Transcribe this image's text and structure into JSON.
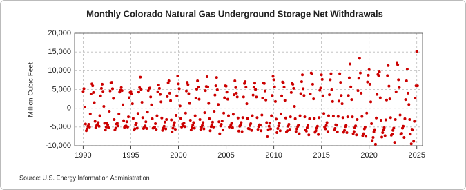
{
  "chart_data": {
    "type": "scatter",
    "title": "Monthly Colorado Natural Gas Underground Storage Net Withdrawals",
    "y_label": "Million Cubic Feet",
    "source": "Source: U.S. Energy Information Administration",
    "color": "#cc0000",
    "grid": true,
    "xlim": [
      1989.1,
      2025.6
    ],
    "xticks": [
      1990,
      1995,
      2000,
      2005,
      2010,
      2015,
      2020,
      2025
    ],
    "ylim": [
      -10000,
      20000
    ],
    "yticks": [
      {
        "value": 20000,
        "label": "20,000"
      },
      {
        "value": 15000,
        "label": "15,000"
      },
      {
        "value": 10000,
        "label": "10,000"
      },
      {
        "value": 5000,
        "label": "5,000"
      },
      0,
      {
        "value": -5000,
        "label": "-5,000"
      },
      {
        "value": -10000,
        "label": "-10,000"
      }
    ],
    "x": [
      1990,
      1990.08,
      1990.17,
      1990.25,
      1990.33,
      1990.42,
      1990.5,
      1990.58,
      1990.67,
      1990.75,
      1990.83,
      1990.92,
      1991,
      1991.08,
      1991.17,
      1991.25,
      1991.33,
      1991.42,
      1991.5,
      1991.58,
      1991.67,
      1991.75,
      1991.83,
      1991.92,
      1992,
      1992.08,
      1992.17,
      1992.25,
      1992.33,
      1992.42,
      1992.5,
      1992.58,
      1992.67,
      1992.75,
      1992.83,
      1992.92,
      1993,
      1993.08,
      1993.17,
      1993.25,
      1993.33,
      1993.42,
      1993.5,
      1993.58,
      1993.67,
      1993.75,
      1993.83,
      1993.92,
      1994,
      1994.08,
      1994.17,
      1994.25,
      1994.33,
      1994.42,
      1994.5,
      1994.58,
      1994.67,
      1994.75,
      1994.83,
      1994.92,
      1995,
      1995.08,
      1995.17,
      1995.25,
      1995.33,
      1995.42,
      1995.5,
      1995.58,
      1995.67,
      1995.75,
      1995.83,
      1995.92,
      1996,
      1996.08,
      1996.17,
      1996.25,
      1996.33,
      1996.42,
      1996.5,
      1996.58,
      1996.67,
      1996.75,
      1996.83,
      1996.92,
      1997,
      1997.08,
      1997.17,
      1997.25,
      1997.33,
      1997.42,
      1997.5,
      1997.58,
      1997.67,
      1997.75,
      1997.83,
      1997.92,
      1998,
      1998.08,
      1998.17,
      1998.25,
      1998.33,
      1998.42,
      1998.5,
      1998.58,
      1998.67,
      1998.75,
      1998.83,
      1998.92,
      1999,
      1999.08,
      1999.17,
      1999.25,
      1999.33,
      1999.42,
      1999.5,
      1999.58,
      1999.67,
      1999.75,
      1999.83,
      1999.92,
      2000,
      2000.08,
      2000.17,
      2000.25,
      2000.33,
      2000.42,
      2000.5,
      2000.58,
      2000.67,
      2000.75,
      2000.83,
      2000.92,
      2001,
      2001.08,
      2001.17,
      2001.25,
      2001.33,
      2001.42,
      2001.5,
      2001.58,
      2001.67,
      2001.75,
      2001.83,
      2001.92,
      2002,
      2002.08,
      2002.17,
      2002.25,
      2002.33,
      2002.42,
      2002.5,
      2002.58,
      2002.67,
      2002.75,
      2002.83,
      2002.92,
      2003,
      2003.08,
      2003.17,
      2003.25,
      2003.33,
      2003.42,
      2003.5,
      2003.58,
      2003.67,
      2003.75,
      2003.83,
      2003.92,
      2004,
      2004.08,
      2004.17,
      2004.25,
      2004.33,
      2004.42,
      2004.5,
      2004.58,
      2004.67,
      2004.75,
      2004.83,
      2004.92,
      2005,
      2005.08,
      2005.17,
      2005.25,
      2005.33,
      2005.42,
      2005.5,
      2005.58,
      2005.67,
      2005.75,
      2005.83,
      2005.92,
      2006,
      2006.08,
      2006.17,
      2006.25,
      2006.33,
      2006.42,
      2006.5,
      2006.58,
      2006.67,
      2006.75,
      2006.83,
      2006.92,
      2007,
      2007.08,
      2007.17,
      2007.25,
      2007.33,
      2007.42,
      2007.5,
      2007.58,
      2007.67,
      2007.75,
      2007.83,
      2007.92,
      2008,
      2008.08,
      2008.17,
      2008.25,
      2008.33,
      2008.42,
      2008.5,
      2008.58,
      2008.67,
      2008.75,
      2008.83,
      2008.92,
      2009,
      2009.08,
      2009.17,
      2009.25,
      2009.33,
      2009.42,
      2009.5,
      2009.58,
      2009.67,
      2009.75,
      2009.83,
      2009.92,
      2010,
      2010.08,
      2010.17,
      2010.25,
      2010.33,
      2010.42,
      2010.5,
      2010.58,
      2010.67,
      2010.75,
      2010.83,
      2010.92,
      2011,
      2011.08,
      2011.17,
      2011.25,
      2011.33,
      2011.42,
      2011.5,
      2011.58,
      2011.67,
      2011.75,
      2011.83,
      2011.92,
      2012,
      2012.08,
      2012.17,
      2012.25,
      2012.33,
      2012.42,
      2012.5,
      2012.58,
      2012.67,
      2012.75,
      2012.83,
      2012.92,
      2013,
      2013.08,
      2013.17,
      2013.25,
      2013.33,
      2013.42,
      2013.5,
      2013.58,
      2013.67,
      2013.75,
      2013.83,
      2013.92,
      2014,
      2014.08,
      2014.17,
      2014.25,
      2014.33,
      2014.42,
      2014.5,
      2014.58,
      2014.67,
      2014.75,
      2014.83,
      2014.92,
      2015,
      2015.08,
      2015.17,
      2015.25,
      2015.33,
      2015.42,
      2015.5,
      2015.58,
      2015.67,
      2015.75,
      2015.83,
      2015.92,
      2016,
      2016.08,
      2016.17,
      2016.25,
      2016.33,
      2016.42,
      2016.5,
      2016.58,
      2016.67,
      2016.75,
      2016.83,
      2016.92,
      2017,
      2017.08,
      2017.17,
      2017.25,
      2017.33,
      2017.42,
      2017.5,
      2017.58,
      2017.67,
      2017.75,
      2017.83,
      2017.92,
      2018,
      2018.08,
      2018.17,
      2018.25,
      2018.33,
      2018.42,
      2018.5,
      2018.58,
      2018.67,
      2018.75,
      2018.83,
      2018.92,
      2019,
      2019.08,
      2019.17,
      2019.25,
      2019.33,
      2019.42,
      2019.5,
      2019.58,
      2019.67,
      2019.75,
      2019.83,
      2019.92,
      2020,
      2020.08,
      2020.17,
      2020.25,
      2020.33,
      2020.42,
      2020.5,
      2020.58,
      2020.67,
      2020.75,
      2020.83,
      2020.92,
      2021,
      2021.08,
      2021.17,
      2021.25,
      2021.33,
      2021.42,
      2021.5,
      2021.58,
      2021.67,
      2021.75,
      2021.83,
      2021.92,
      2022,
      2022.08,
      2022.17,
      2022.25,
      2022.33,
      2022.42,
      2022.5,
      2022.58,
      2022.67,
      2022.75,
      2022.83,
      2022.92,
      2023,
      2023.08,
      2023.17,
      2023.25,
      2023.33,
      2023.42,
      2023.5,
      2023.58,
      2023.67,
      2023.75,
      2023.83,
      2023.92,
      2024,
      2024.08,
      2024.17,
      2024.25,
      2024.33,
      2024.42,
      2024.5,
      2024.58,
      2024.67,
      2024.75,
      2024.83,
      2024.92,
      2025,
      2025.08
    ],
    "values": [
      4500,
      5200,
      300,
      -4200,
      -6000,
      -5500,
      -4800,
      -4300,
      -5000,
      -1500,
      3800,
      6500,
      6000,
      4200,
      1500,
      -3500,
      -5200,
      -4600,
      -4300,
      -3800,
      -4800,
      -2000,
      3300,
      5300,
      6400,
      4500,
      500,
      -4000,
      -5800,
      -5000,
      -4000,
      -4400,
      -5200,
      -800,
      4600,
      6800,
      6900,
      5200,
      2600,
      -3000,
      -5800,
      -5300,
      -4200,
      -4000,
      -4700,
      -1500,
      4300,
      4800,
      5500,
      4700,
      900,
      -3300,
      -5100,
      -4800,
      -4700,
      -3600,
      -5000,
      -2300,
      2800,
      4200,
      4500,
      3900,
      1200,
      -2700,
      -5800,
      -5500,
      -4400,
      -4000,
      -5300,
      -1400,
      4300,
      5500,
      8300,
      5000,
      1600,
      -2500,
      -5400,
      -5000,
      -4700,
      -3600,
      -5400,
      -1000,
      4700,
      5300,
      5400,
      3000,
      900,
      -2800,
      -5300,
      -5200,
      -5000,
      -4100,
      -5600,
      -2000,
      4400,
      6200,
      5300,
      3700,
      1700,
      -2600,
      -5900,
      -5300,
      -4800,
      -3700,
      -5500,
      -3000,
      3100,
      6800,
      7300,
      4000,
      2000,
      -3100,
      -6300,
      -5300,
      -4600,
      -3800,
      -5600,
      -1900,
      3300,
      8600,
      6500,
      5200,
      600,
      -2700,
      -5000,
      -4200,
      -4700,
      -4000,
      -4900,
      -1300,
      4600,
      6900,
      6300,
      3900,
      1300,
      -3200,
      -5800,
      -5200,
      -4500,
      -3800,
      -5300,
      -2000,
      2700,
      5100,
      7300,
      5600,
      2400,
      -3000,
      -5600,
      -5000,
      -4600,
      -3800,
      -5500,
      -1200,
      4700,
      5800,
      8400,
      5700,
      1300,
      -2800,
      -6000,
      -4900,
      -4400,
      -3700,
      -5000,
      -800,
      3500,
      6000,
      8200,
      4900,
      1000,
      -3600,
      -6800,
      -4700,
      -4300,
      -3400,
      -5800,
      -1300,
      2800,
      6000,
      5900,
      4300,
      2400,
      -2000,
      -5000,
      -4900,
      -4400,
      -4000,
      -5200,
      -1600,
      3600,
      7300,
      5500,
      4000,
      3000,
      -2600,
      -6100,
      -4800,
      -4400,
      -3800,
      -6200,
      -2500,
      3000,
      6600,
      7100,
      5600,
      1200,
      -2700,
      -5400,
      -5500,
      -4600,
      -4100,
      -5900,
      -2000,
      3500,
      5600,
      6700,
      5000,
      3000,
      -2500,
      -5600,
      -4900,
      -4400,
      -4500,
      -6000,
      -1800,
      2700,
      6700,
      6600,
      4600,
      2200,
      -3800,
      -7600,
      -5700,
      -4800,
      -4000,
      -5500,
      -2000,
      3400,
      8500,
      7600,
      5700,
      1800,
      -2900,
      -6500,
      -5400,
      -4700,
      -4000,
      -6000,
      -1500,
      3300,
      7000,
      6800,
      5600,
      2100,
      -2600,
      -6300,
      -6000,
      -4800,
      -4300,
      -5600,
      -2300,
      4200,
      6600,
      6400,
      5300,
      500,
      -2800,
      -6200,
      -5500,
      -4900,
      -4500,
      -6800,
      -2000,
      3900,
      7100,
      8900,
      5200,
      3400,
      -2300,
      -5800,
      -6100,
      -5200,
      -4600,
      -7100,
      -2800,
      3800,
      9400,
      9200,
      6400,
      2500,
      -2700,
      -6400,
      -6000,
      -5300,
      -4800,
      -7000,
      -2500,
      4800,
      5400,
      8900,
      7700,
      3300,
      -1400,
      -5000,
      -5500,
      -4600,
      -3800,
      -6200,
      -2000,
      3600,
      7600,
      9200,
      4900,
      1800,
      -2100,
      -5800,
      -5400,
      -4400,
      -4500,
      -6300,
      -2200,
      1900,
      9200,
      6900,
      3400,
      1200,
      -2500,
      -6400,
      -5900,
      -4900,
      -4600,
      -6500,
      -2300,
      3400,
      8100,
      11800,
      5700,
      2300,
      -2300,
      -6800,
      -6200,
      -5200,
      -4700,
      -7100,
      -3000,
      4700,
      8000,
      13300,
      9400,
      4000,
      -2200,
      -7300,
      -6800,
      -5500,
      -5000,
      -7500,
      -1300,
      7000,
      8800,
      10300,
      6400,
      1700,
      -4100,
      -8600,
      -7800,
      -6300,
      -5700,
      -9600,
      -2600,
      3700,
      9000,
      8700,
      9700,
      2800,
      -3200,
      -7700,
      -6500,
      -5800,
      -5200,
      -7300,
      -3100,
      2200,
      8700,
      11400,
      5900,
      2500,
      -2500,
      -7200,
      -6900,
      -5900,
      -5300,
      -9100,
      -3000,
      4400,
      12000,
      11600,
      7600,
      5500,
      -1800,
      -6900,
      -6700,
      -5300,
      -4800,
      -7800,
      -2800,
      2300,
      7300,
      10400,
      4000,
      1000,
      -3000,
      -6900,
      -9500,
      -5600,
      -5800,
      -8800,
      -3500,
      2700,
      6000,
      15200,
      6000
    ]
  }
}
